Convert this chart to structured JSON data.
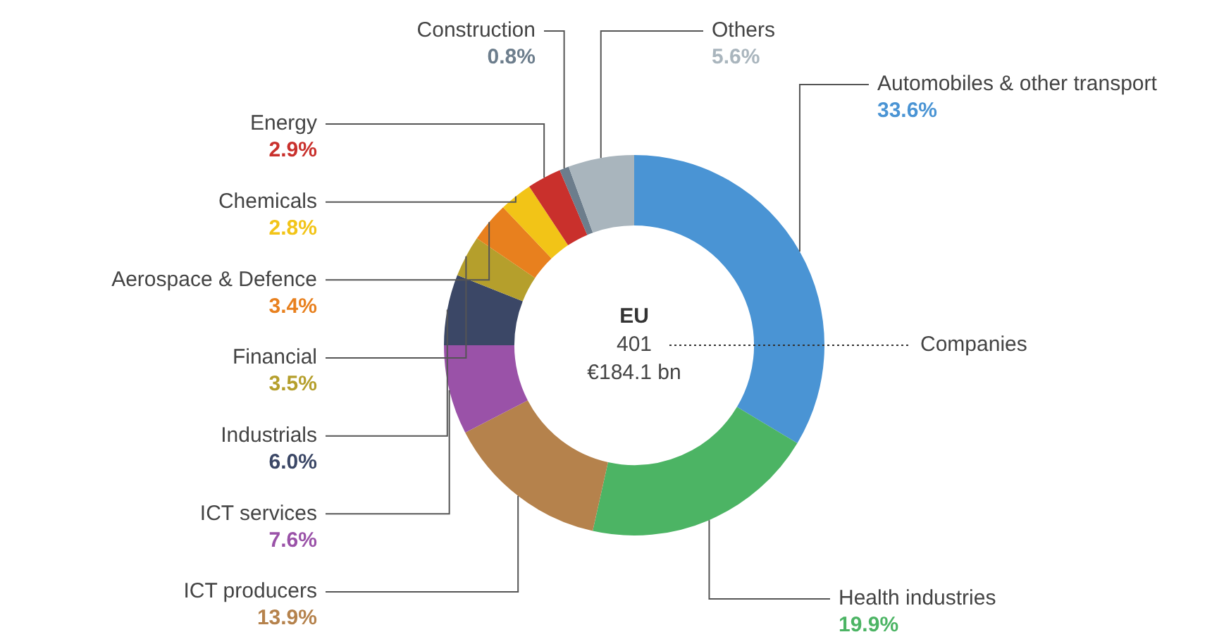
{
  "chart_data": {
    "type": "donut",
    "title": "EU",
    "categories": [
      "Automobiles & other transport",
      "Health industries",
      "ICT producers",
      "ICT services",
      "Industrials",
      "Financial",
      "Aerospace & Defence",
      "Chemicals",
      "Energy",
      "Construction",
      "Others"
    ],
    "values": [
      33.6,
      19.9,
      13.9,
      7.6,
      6.0,
      3.5,
      3.4,
      2.8,
      2.9,
      0.8,
      5.6
    ],
    "value_labels": [
      "33.6%",
      "19.9%",
      "13.9%",
      "7.6%",
      "6.0%",
      "3.5%",
      "3.4%",
      "2.8%",
      "2.9%",
      "0.8%",
      "5.6%"
    ],
    "colors": [
      "#4a94d4",
      "#4cb464",
      "#b5824c",
      "#9a52a8",
      "#3b4766",
      "#b59f2c",
      "#e8801e",
      "#f2c417",
      "#c9302c",
      "#6c7d8c",
      "#a9b5bd"
    ],
    "annotations": [
      "401",
      "€184.1 bn",
      "Companies"
    ],
    "legend": false
  }
}
